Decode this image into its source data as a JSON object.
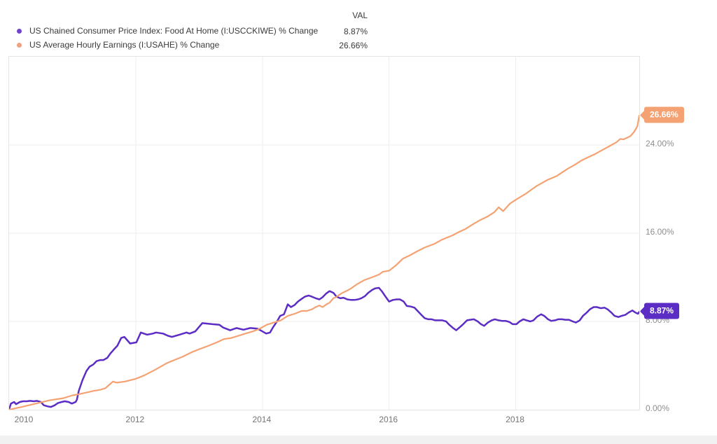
{
  "legend": {
    "val_header": "VAL",
    "items": [
      {
        "label": "US Chained Consumer Price Index: Food At Home (I:USCCKIWE) % Change",
        "val": "8.87%",
        "dot_color": "#6f44d0"
      },
      {
        "label": "US Average Hourly Earnings (I:USAHE) % Change",
        "val": "26.66%",
        "dot_color": "#efa181"
      }
    ]
  },
  "chart_data": {
    "type": "line",
    "title": "",
    "xlabel": "",
    "ylabel": "",
    "x_axis": {
      "range": [
        2010,
        2019.95
      ],
      "ticks": [
        2010,
        2012,
        2014,
        2016,
        2018
      ],
      "tick_labels": [
        "2010",
        "2012",
        "2014",
        "2016",
        "2018"
      ],
      "gridlines": true
    },
    "y_axis": {
      "range": [
        0,
        32
      ],
      "ticks": [
        0,
        8,
        16,
        24
      ],
      "tick_labels": [
        "0.00%",
        "8.00%",
        "16.00%",
        "24.00%"
      ],
      "side": "right",
      "gridlines": true
    },
    "legend_position": "top-left",
    "series": [
      {
        "name": "US Chained Consumer Price Index: Food At Home (I:USCCKIWE) % Change",
        "color": "#5c2dc4",
        "badge": "8.87%",
        "final_value": 8.87,
        "points": [
          [
            2010.0,
            0.05
          ],
          [
            2010.03,
            0.55
          ],
          [
            2010.08,
            0.7
          ],
          [
            2010.11,
            0.5
          ],
          [
            2010.17,
            0.7
          ],
          [
            2010.22,
            0.76
          ],
          [
            2010.28,
            0.76
          ],
          [
            2010.33,
            0.8
          ],
          [
            2010.39,
            0.76
          ],
          [
            2010.44,
            0.8
          ],
          [
            2010.5,
            0.7
          ],
          [
            2010.55,
            0.4
          ],
          [
            2010.61,
            0.3
          ],
          [
            2010.66,
            0.25
          ],
          [
            2010.72,
            0.4
          ],
          [
            2010.77,
            0.6
          ],
          [
            2010.83,
            0.7
          ],
          [
            2010.88,
            0.76
          ],
          [
            2010.94,
            0.7
          ],
          [
            2010.99,
            0.55
          ],
          [
            2011.05,
            0.7
          ],
          [
            2011.07,
            0.9
          ],
          [
            2011.1,
            1.7
          ],
          [
            2011.16,
            2.7
          ],
          [
            2011.22,
            3.5
          ],
          [
            2011.27,
            3.9
          ],
          [
            2011.33,
            4.1
          ],
          [
            2011.38,
            4.4
          ],
          [
            2011.44,
            4.5
          ],
          [
            2011.49,
            4.5
          ],
          [
            2011.55,
            4.7
          ],
          [
            2011.6,
            5.1
          ],
          [
            2011.66,
            5.5
          ],
          [
            2011.71,
            5.8
          ],
          [
            2011.77,
            6.5
          ],
          [
            2011.82,
            6.6
          ],
          [
            2011.91,
            6.0
          ],
          [
            2012.01,
            6.1
          ],
          [
            2012.08,
            7.0
          ],
          [
            2012.18,
            6.8
          ],
          [
            2012.27,
            6.9
          ],
          [
            2012.32,
            7.0
          ],
          [
            2012.43,
            6.9
          ],
          [
            2012.51,
            6.7
          ],
          [
            2012.57,
            6.6
          ],
          [
            2012.69,
            6.8
          ],
          [
            2012.8,
            7.0
          ],
          [
            2012.85,
            6.9
          ],
          [
            2012.94,
            7.1
          ],
          [
            2013.05,
            7.85
          ],
          [
            2013.21,
            7.75
          ],
          [
            2013.32,
            7.7
          ],
          [
            2013.38,
            7.45
          ],
          [
            2013.49,
            7.2
          ],
          [
            2013.59,
            7.4
          ],
          [
            2013.7,
            7.25
          ],
          [
            2013.81,
            7.4
          ],
          [
            2013.92,
            7.35
          ],
          [
            2014.0,
            7.1
          ],
          [
            2014.06,
            6.9
          ],
          [
            2014.12,
            7.0
          ],
          [
            2014.17,
            7.5
          ],
          [
            2014.23,
            8.0
          ],
          [
            2014.28,
            8.5
          ],
          [
            2014.34,
            8.65
          ],
          [
            2014.4,
            9.55
          ],
          [
            2014.45,
            9.3
          ],
          [
            2014.51,
            9.5
          ],
          [
            2014.56,
            9.8
          ],
          [
            2014.62,
            10.05
          ],
          [
            2014.67,
            10.25
          ],
          [
            2014.73,
            10.35
          ],
          [
            2014.78,
            10.25
          ],
          [
            2014.84,
            10.1
          ],
          [
            2014.9,
            10.0
          ],
          [
            2014.95,
            10.2
          ],
          [
            2015.01,
            10.55
          ],
          [
            2015.06,
            10.75
          ],
          [
            2015.12,
            10.6
          ],
          [
            2015.17,
            10.25
          ],
          [
            2015.23,
            10.1
          ],
          [
            2015.28,
            10.15
          ],
          [
            2015.34,
            10.0
          ],
          [
            2015.4,
            9.95
          ],
          [
            2015.45,
            9.95
          ],
          [
            2015.51,
            10.0
          ],
          [
            2015.56,
            10.1
          ],
          [
            2015.62,
            10.3
          ],
          [
            2015.67,
            10.6
          ],
          [
            2015.73,
            10.85
          ],
          [
            2015.78,
            11.0
          ],
          [
            2015.84,
            11.05
          ],
          [
            2015.89,
            10.7
          ],
          [
            2015.95,
            10.2
          ],
          [
            2016.0,
            9.8
          ],
          [
            2016.06,
            9.95
          ],
          [
            2016.12,
            10.0
          ],
          [
            2016.17,
            10.0
          ],
          [
            2016.23,
            9.8
          ],
          [
            2016.28,
            9.4
          ],
          [
            2016.34,
            9.35
          ],
          [
            2016.4,
            9.25
          ],
          [
            2016.45,
            8.95
          ],
          [
            2016.51,
            8.6
          ],
          [
            2016.56,
            8.3
          ],
          [
            2016.62,
            8.2
          ],
          [
            2016.67,
            8.2
          ],
          [
            2016.73,
            8.1
          ],
          [
            2016.78,
            8.1
          ],
          [
            2016.84,
            8.1
          ],
          [
            2016.9,
            8.0
          ],
          [
            2016.95,
            7.7
          ],
          [
            2017.01,
            7.4
          ],
          [
            2017.06,
            7.2
          ],
          [
            2017.12,
            7.5
          ],
          [
            2017.17,
            7.75
          ],
          [
            2017.23,
            8.1
          ],
          [
            2017.28,
            8.15
          ],
          [
            2017.34,
            8.2
          ],
          [
            2017.4,
            8.0
          ],
          [
            2017.45,
            7.75
          ],
          [
            2017.5,
            7.6
          ],
          [
            2017.56,
            7.9
          ],
          [
            2017.62,
            8.1
          ],
          [
            2017.67,
            8.2
          ],
          [
            2017.73,
            8.1
          ],
          [
            2017.78,
            8.05
          ],
          [
            2017.84,
            8.05
          ],
          [
            2017.9,
            7.95
          ],
          [
            2017.95,
            7.75
          ],
          [
            2018.01,
            7.75
          ],
          [
            2018.06,
            8.0
          ],
          [
            2018.12,
            8.2
          ],
          [
            2018.17,
            8.1
          ],
          [
            2018.23,
            8.0
          ],
          [
            2018.28,
            8.1
          ],
          [
            2018.34,
            8.45
          ],
          [
            2018.4,
            8.65
          ],
          [
            2018.45,
            8.5
          ],
          [
            2018.51,
            8.2
          ],
          [
            2018.56,
            8.05
          ],
          [
            2018.62,
            8.1
          ],
          [
            2018.67,
            8.2
          ],
          [
            2018.73,
            8.2
          ],
          [
            2018.78,
            8.15
          ],
          [
            2018.84,
            8.15
          ],
          [
            2018.9,
            8.0
          ],
          [
            2018.95,
            7.9
          ],
          [
            2019.01,
            8.1
          ],
          [
            2019.06,
            8.5
          ],
          [
            2019.12,
            8.8
          ],
          [
            2019.17,
            9.1
          ],
          [
            2019.23,
            9.3
          ],
          [
            2019.28,
            9.3
          ],
          [
            2019.34,
            9.2
          ],
          [
            2019.4,
            9.25
          ],
          [
            2019.45,
            9.1
          ],
          [
            2019.51,
            8.8
          ],
          [
            2019.56,
            8.5
          ],
          [
            2019.62,
            8.4
          ],
          [
            2019.67,
            8.5
          ],
          [
            2019.73,
            8.6
          ],
          [
            2019.78,
            8.8
          ],
          [
            2019.84,
            9.0
          ],
          [
            2019.89,
            8.8
          ],
          [
            2019.93,
            8.7
          ],
          [
            2019.95,
            8.87
          ]
        ]
      },
      {
        "name": "US Average Hourly Earnings (I:USAHE) % Change",
        "color": "#f4a273",
        "badge": "26.66%",
        "final_value": 26.66,
        "points": [
          [
            2010.0,
            0.0
          ],
          [
            2010.2,
            0.25
          ],
          [
            2010.42,
            0.55
          ],
          [
            2010.64,
            0.85
          ],
          [
            2010.86,
            1.05
          ],
          [
            2011.0,
            1.3
          ],
          [
            2011.1,
            1.4
          ],
          [
            2011.22,
            1.55
          ],
          [
            2011.33,
            1.7
          ],
          [
            2011.44,
            1.8
          ],
          [
            2011.52,
            1.95
          ],
          [
            2011.6,
            2.35
          ],
          [
            2011.64,
            2.55
          ],
          [
            2011.7,
            2.45
          ],
          [
            2011.83,
            2.55
          ],
          [
            2012.0,
            2.8
          ],
          [
            2012.13,
            3.1
          ],
          [
            2012.3,
            3.6
          ],
          [
            2012.5,
            4.25
          ],
          [
            2012.74,
            4.8
          ],
          [
            2012.9,
            5.25
          ],
          [
            2013.01,
            5.5
          ],
          [
            2013.15,
            5.8
          ],
          [
            2013.28,
            6.1
          ],
          [
            2013.39,
            6.4
          ],
          [
            2013.51,
            6.5
          ],
          [
            2013.62,
            6.7
          ],
          [
            2013.73,
            6.9
          ],
          [
            2013.85,
            7.1
          ],
          [
            2013.96,
            7.35
          ],
          [
            2014.07,
            7.7
          ],
          [
            2014.18,
            7.9
          ],
          [
            2014.29,
            8.1
          ],
          [
            2014.4,
            8.5
          ],
          [
            2014.51,
            8.7
          ],
          [
            2014.62,
            8.95
          ],
          [
            2014.7,
            8.95
          ],
          [
            2014.78,
            9.1
          ],
          [
            2014.84,
            9.3
          ],
          [
            2014.9,
            9.45
          ],
          [
            2014.95,
            9.3
          ],
          [
            2015.01,
            9.55
          ],
          [
            2015.06,
            9.7
          ],
          [
            2015.12,
            10.1
          ],
          [
            2015.16,
            10.2
          ],
          [
            2015.25,
            10.55
          ],
          [
            2015.34,
            10.8
          ],
          [
            2015.4,
            11.0
          ],
          [
            2015.5,
            11.4
          ],
          [
            2015.61,
            11.75
          ],
          [
            2015.73,
            12.0
          ],
          [
            2015.84,
            12.25
          ],
          [
            2015.9,
            12.5
          ],
          [
            2016.0,
            12.6
          ],
          [
            2016.11,
            13.1
          ],
          [
            2016.22,
            13.7
          ],
          [
            2016.33,
            14.0
          ],
          [
            2016.44,
            14.35
          ],
          [
            2016.56,
            14.7
          ],
          [
            2016.72,
            15.05
          ],
          [
            2016.83,
            15.4
          ],
          [
            2017.0,
            15.8
          ],
          [
            2017.1,
            16.1
          ],
          [
            2017.21,
            16.4
          ],
          [
            2017.32,
            16.8
          ],
          [
            2017.44,
            17.2
          ],
          [
            2017.55,
            17.5
          ],
          [
            2017.66,
            17.9
          ],
          [
            2017.73,
            18.35
          ],
          [
            2017.8,
            18.0
          ],
          [
            2017.91,
            18.7
          ],
          [
            2018.02,
            19.1
          ],
          [
            2018.15,
            19.55
          ],
          [
            2018.32,
            20.25
          ],
          [
            2018.49,
            20.8
          ],
          [
            2018.65,
            21.2
          ],
          [
            2018.82,
            21.85
          ],
          [
            2018.93,
            22.2
          ],
          [
            2019.04,
            22.6
          ],
          [
            2019.15,
            22.9
          ],
          [
            2019.26,
            23.2
          ],
          [
            2019.37,
            23.55
          ],
          [
            2019.48,
            23.9
          ],
          [
            2019.59,
            24.25
          ],
          [
            2019.65,
            24.55
          ],
          [
            2019.7,
            24.5
          ],
          [
            2019.81,
            24.8
          ],
          [
            2019.87,
            25.2
          ],
          [
            2019.92,
            25.7
          ],
          [
            2019.95,
            26.66
          ]
        ]
      }
    ]
  },
  "colors": {
    "background": "#ffffff",
    "plot_border": "#e4e4e4",
    "gridline": "#eeeeee",
    "legend_text": "#3a3a3a",
    "y_axis_text": "#8e8e8e",
    "x_axis_text": "#757575",
    "cpi_purple": "#5c2dc4",
    "earnings_orange": "#f4a273"
  }
}
